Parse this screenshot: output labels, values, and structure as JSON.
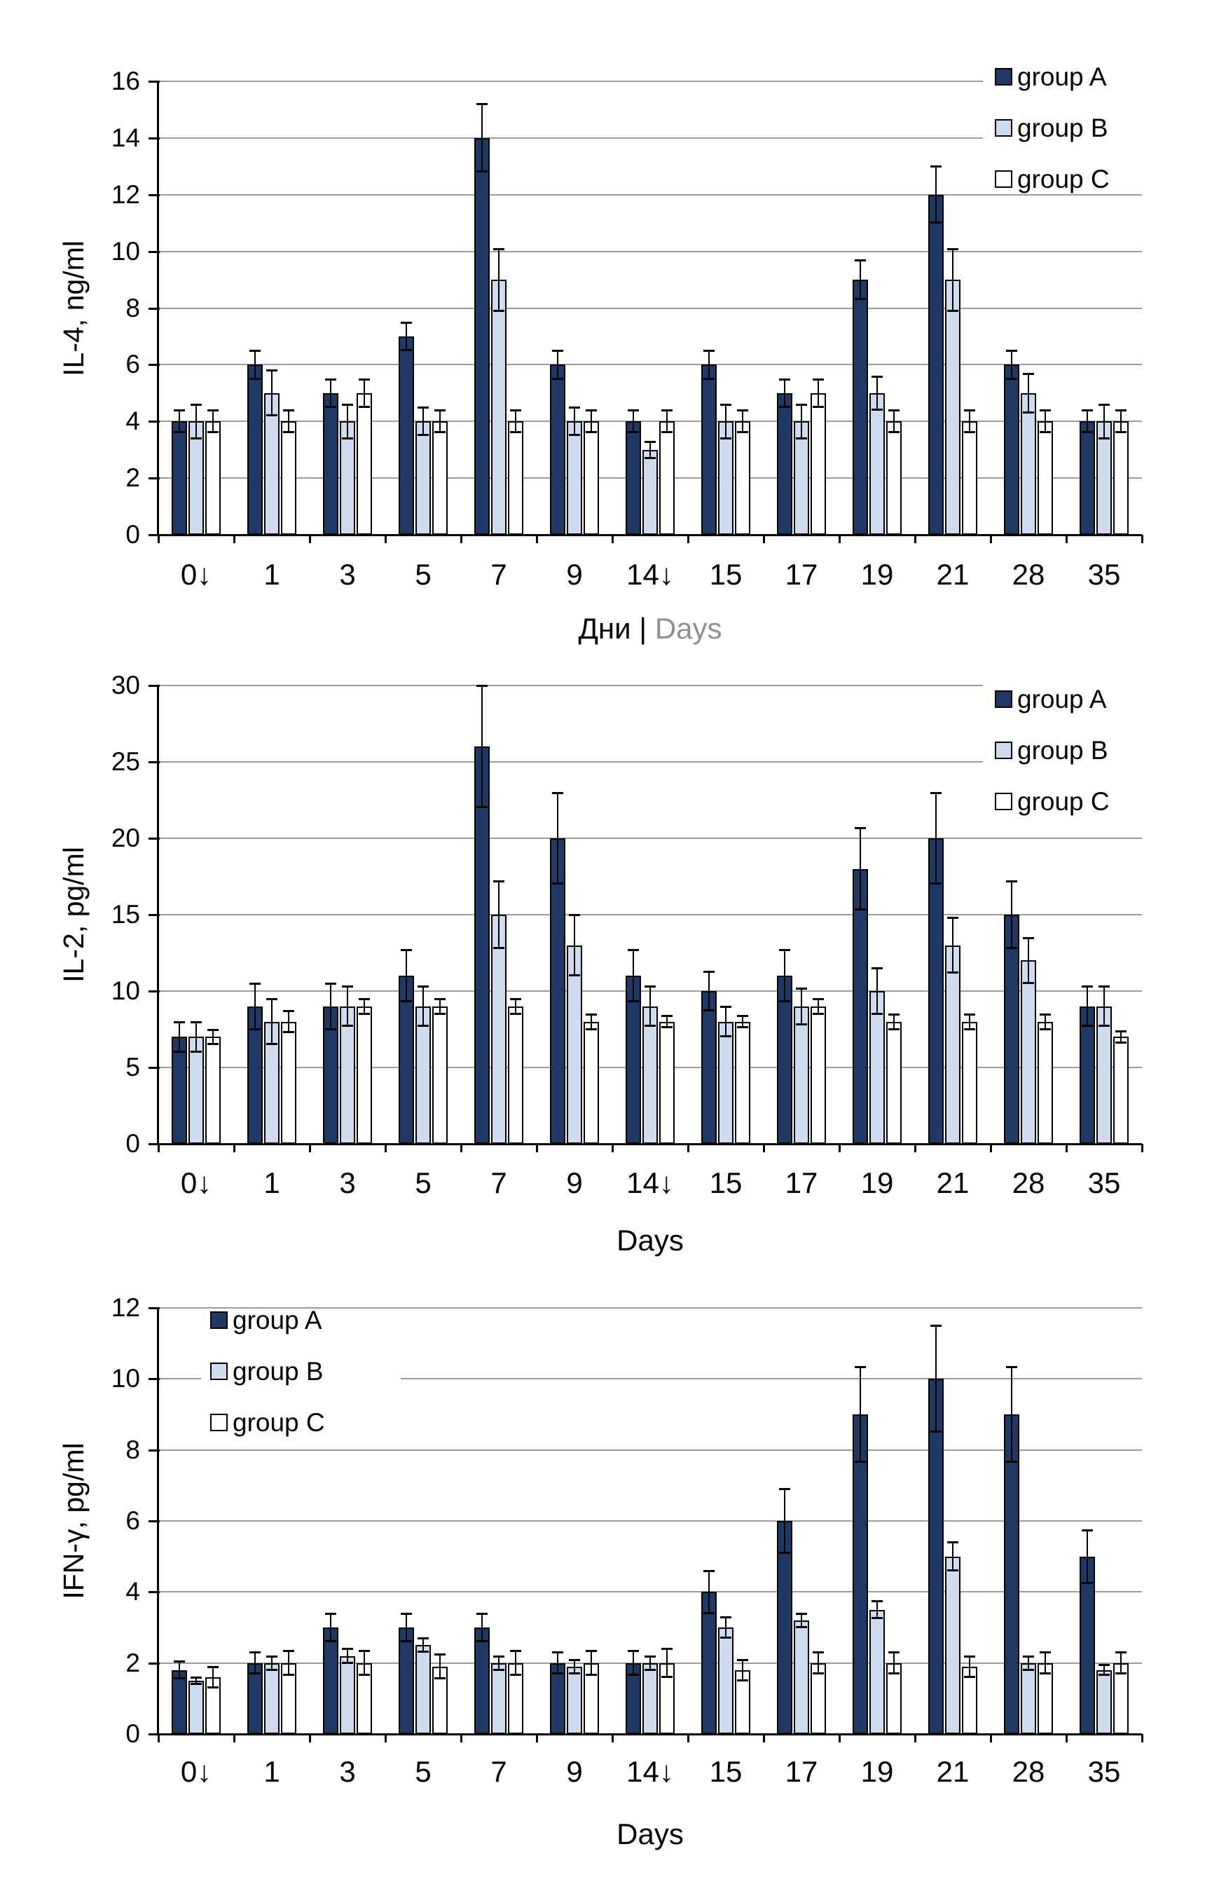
{
  "page": {
    "background": "#FFFFFF"
  },
  "colors": {
    "group_a": "#1F3864",
    "group_b": "#CFDCF0",
    "group_c": "#FFFFFF",
    "gridline": "#9C9C9C",
    "axis": "#000000",
    "secondary_title_gray": "#909090"
  },
  "chart_data": [
    {
      "id": "il4",
      "type": "bar",
      "ylabel": "IL-4, ng/ml",
      "xtitle_parts": [
        {
          "text": "Дни | ",
          "color": "#000000"
        },
        {
          "text": "Days",
          "color": "#909090"
        }
      ],
      "ylim": [
        0,
        16
      ],
      "yticks": [
        0,
        2,
        4,
        6,
        8,
        10,
        12,
        14,
        16
      ],
      "grid": true,
      "legend_position": "top-right",
      "categories": [
        "0↓",
        "1",
        "3",
        "5",
        "7",
        "9",
        "14↓",
        "15",
        "17",
        "19",
        "21",
        "28",
        "35"
      ],
      "series": [
        {
          "name": "group A",
          "color": "#1F3864",
          "values": [
            4,
            6,
            5,
            7,
            14,
            6,
            4,
            6,
            5,
            9,
            12,
            6,
            4
          ],
          "errors": [
            0.4,
            0.5,
            0.5,
            0.5,
            1.2,
            0.5,
            0.4,
            0.5,
            0.5,
            0.7,
            1.0,
            0.5,
            0.4
          ]
        },
        {
          "name": "group B",
          "color": "#CFDCF0",
          "values": [
            4,
            5,
            4,
            4,
            9,
            4,
            3,
            4,
            4,
            5,
            9,
            5,
            4
          ],
          "errors": [
            0.6,
            0.8,
            0.6,
            0.5,
            1.1,
            0.5,
            0.3,
            0.6,
            0.6,
            0.6,
            1.1,
            0.7,
            0.6
          ]
        },
        {
          "name": "group C",
          "color": "#FFFFFF",
          "values": [
            4,
            4,
            5,
            4,
            4,
            4,
            4,
            4,
            5,
            4,
            4,
            4,
            4
          ],
          "errors": [
            0.4,
            0.4,
            0.5,
            0.4,
            0.4,
            0.4,
            0.4,
            0.4,
            0.5,
            0.4,
            0.4,
            0.4,
            0.4
          ]
        }
      ]
    },
    {
      "id": "il2",
      "type": "bar",
      "ylabel": "IL-2, pg/ml",
      "xtitle_parts": [
        {
          "text": "Days",
          "color": "#000000"
        }
      ],
      "ylim": [
        0,
        30
      ],
      "yticks": [
        0,
        5,
        10,
        15,
        20,
        25,
        30
      ],
      "grid": true,
      "legend_position": "top-right",
      "categories": [
        "0↓",
        "1",
        "3",
        "5",
        "7",
        "9",
        "14↓",
        "15",
        "17",
        "19",
        "21",
        "28",
        "35"
      ],
      "series": [
        {
          "name": "group A",
          "color": "#1F3864",
          "values": [
            7,
            9,
            9,
            11,
            26,
            20,
            11,
            10,
            11,
            18,
            20,
            15,
            9
          ],
          "errors": [
            1.0,
            1.5,
            1.5,
            1.7,
            4.0,
            3.0,
            1.7,
            1.3,
            1.7,
            2.7,
            3.0,
            2.2,
            1.3
          ]
        },
        {
          "name": "group B",
          "color": "#CFDCF0",
          "values": [
            7,
            8,
            9,
            9,
            15,
            13,
            9,
            8,
            9,
            10,
            13,
            12,
            9
          ],
          "errors": [
            1.0,
            1.5,
            1.3,
            1.3,
            2.2,
            2.0,
            1.3,
            1.0,
            1.2,
            1.5,
            1.8,
            1.5,
            1.3
          ]
        },
        {
          "name": "group C",
          "color": "#FFFFFF",
          "values": [
            7,
            8,
            9,
            9,
            9,
            8,
            8,
            8,
            9,
            8,
            8,
            8,
            7
          ],
          "errors": [
            0.5,
            0.7,
            0.5,
            0.5,
            0.5,
            0.5,
            0.4,
            0.4,
            0.5,
            0.5,
            0.5,
            0.5,
            0.4
          ]
        }
      ]
    },
    {
      "id": "ifn-gamma",
      "type": "bar",
      "ylabel": "IFN-γ, pg/ml",
      "xtitle_parts": [
        {
          "text": "Days",
          "color": "#000000"
        }
      ],
      "ylim": [
        0,
        12
      ],
      "yticks": [
        0,
        2,
        4,
        6,
        8,
        10,
        12
      ],
      "grid": true,
      "legend_position": "top-left",
      "categories": [
        "0↓",
        "1",
        "3",
        "5",
        "7",
        "9",
        "14↓",
        "15",
        "17",
        "19",
        "21",
        "28",
        "35"
      ],
      "series": [
        {
          "name": "group A",
          "color": "#1F3864",
          "values": [
            1.8,
            2,
            3,
            3,
            3,
            2,
            2,
            4,
            6,
            9,
            10,
            9,
            5
          ],
          "errors": [
            0.25,
            0.3,
            0.4,
            0.4,
            0.4,
            0.3,
            0.35,
            0.6,
            0.9,
            1.35,
            1.5,
            1.35,
            0.75
          ]
        },
        {
          "name": "group B",
          "color": "#CFDCF0",
          "values": [
            1.5,
            2,
            2.2,
            2.5,
            2,
            1.9,
            2,
            3,
            3.2,
            3.5,
            5,
            2,
            1.8
          ],
          "errors": [
            0.1,
            0.2,
            0.2,
            0.2,
            0.2,
            0.2,
            0.2,
            0.3,
            0.2,
            0.25,
            0.4,
            0.2,
            0.15
          ]
        },
        {
          "name": "group C",
          "color": "#FFFFFF",
          "values": [
            1.6,
            2,
            2,
            1.9,
            2,
            2,
            2,
            1.8,
            2,
            2,
            1.9,
            2,
            2
          ],
          "errors": [
            0.3,
            0.35,
            0.35,
            0.35,
            0.35,
            0.35,
            0.4,
            0.3,
            0.3,
            0.3,
            0.3,
            0.3,
            0.3
          ]
        }
      ]
    }
  ]
}
